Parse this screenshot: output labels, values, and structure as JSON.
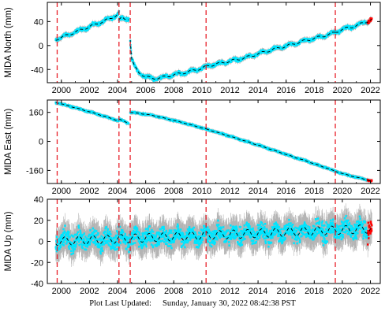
{
  "footer": {
    "label": "Plot Last Updated:",
    "value": "Sunday, January 30, 2022 08:42:38 PST"
  },
  "colors": {
    "data": "#00e5ff",
    "error_bars": "#b4b4b4",
    "model": "#000000",
    "event_lines": "#e8202a",
    "recent": "#ff0000"
  },
  "chart_data": [
    {
      "type": "scatter",
      "id": "north",
      "ylabel": "MIDA North (mm)",
      "xlim": [
        1999.0,
        2022.7
      ],
      "ylim": [
        -62,
        72
      ],
      "xticks": [
        2000,
        2002,
        2004,
        2006,
        2008,
        2010,
        2012,
        2014,
        2016,
        2018,
        2020,
        2022
      ],
      "yticks": [
        -40,
        0,
        40
      ],
      "events": [
        1999.7,
        2004.1,
        2004.9,
        2010.3,
        2019.5
      ],
      "series": [
        {
          "x": [
            1999.6,
            2000.5,
            2001.5,
            2002.5,
            2003.5,
            2004.0,
            2004.1
          ],
          "y": [
            10,
            18,
            27,
            36,
            45,
            52,
            56
          ]
        },
        {
          "x": [
            2004.1,
            2004.3,
            2004.5,
            2004.8
          ],
          "y": [
            42,
            46,
            44,
            45
          ]
        },
        {
          "x": [
            2004.9,
            2005.0,
            2005.2,
            2005.5,
            2006.0,
            2006.5,
            2007.0,
            2008.0,
            2009.0,
            2010.0,
            2010.3
          ],
          "y": [
            10,
            -22,
            -35,
            -45,
            -52,
            -55,
            -54,
            -49,
            -44,
            -38,
            -35
          ]
        },
        {
          "x": [
            2010.3,
            2011.0,
            2012.0,
            2013.0,
            2014.0,
            2015.0,
            2016.0,
            2017.0,
            2018.0,
            2019.0,
            2019.5
          ],
          "y": [
            -35,
            -31,
            -26,
            -21,
            -14,
            -7,
            -1,
            6,
            12,
            18,
            22
          ]
        },
        {
          "x": [
            2019.5,
            2020.0,
            2021.0,
            2021.5,
            2022.1
          ],
          "y": [
            22,
            27,
            33,
            38,
            43
          ]
        }
      ]
    },
    {
      "type": "scatter",
      "id": "east",
      "ylabel": "MIDA East (mm)",
      "xlim": [
        1999.0,
        2022.7
      ],
      "ylim": [
        -232,
        228
      ],
      "xticks": [
        2000,
        2002,
        2004,
        2006,
        2008,
        2010,
        2012,
        2014,
        2016,
        2018,
        2020,
        2022
      ],
      "yticks": [
        -160,
        0,
        160
      ],
      "events": [
        1999.7,
        2004.1,
        2004.9,
        2010.3,
        2019.5
      ],
      "series": [
        {
          "x": [
            1999.6,
            2000.5,
            2001.5,
            2002.5,
            2003.5,
            2004.1
          ],
          "y": [
            215,
            196,
            174,
            152,
            128,
            112
          ]
        },
        {
          "x": [
            2004.1,
            2004.5,
            2004.8
          ],
          "y": [
            122,
            110,
            98
          ]
        },
        {
          "x": [
            2004.9,
            2005.5,
            2006.5,
            2007.5,
            2008.5,
            2009.5,
            2010.3
          ],
          "y": [
            160,
            155,
            143,
            125,
            106,
            85,
            68
          ]
        },
        {
          "x": [
            2010.3,
            2011.5,
            2013.0,
            2014.5,
            2016.0,
            2017.5,
            2019.0,
            2019.5
          ],
          "y": [
            68,
            40,
            4,
            -33,
            -72,
            -110,
            -150,
            -165
          ]
        },
        {
          "x": [
            2019.5,
            2020.5,
            2021.5,
            2022.1
          ],
          "y": [
            -165,
            -188,
            -207,
            -220
          ]
        }
      ]
    },
    {
      "type": "scatter",
      "id": "up",
      "ylabel": "MIDA Up (mm)",
      "xlim": [
        1999.0,
        2022.7
      ],
      "ylim": [
        -40,
        40
      ],
      "xticks": [
        2000,
        2002,
        2004,
        2006,
        2008,
        2010,
        2012,
        2014,
        2016,
        2018,
        2020,
        2022
      ],
      "yticks": [
        -40,
        -20,
        0,
        20,
        40
      ],
      "events": [
        1999.7,
        2004.1,
        2004.9,
        2010.3,
        2019.5
      ],
      "trend": {
        "x": [
          1999.6,
          2022.1
        ],
        "y": [
          0,
          12
        ]
      },
      "seasonal_amplitude_mm": 4
    }
  ]
}
